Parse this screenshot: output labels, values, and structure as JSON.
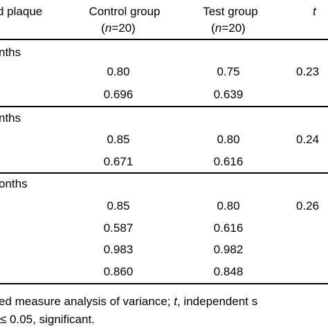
{
  "header": {
    "col1": "d plaque",
    "col2_line1": "Control group",
    "col2_line2_open": "(",
    "col2_line2_n": "n",
    "col2_line2_rest": "=20)",
    "col3_line1": "Test group",
    "col3_line2_open": "(",
    "col3_line2_n": "n",
    "col3_line2_rest": "=20)",
    "col4": "t"
  },
  "sections": [
    {
      "label": "nths",
      "rows": [
        {
          "control": "0.80",
          "test": "0.75",
          "t": "0.23"
        },
        {
          "control": "0.696",
          "test": "0.639",
          "t": ""
        }
      ]
    },
    {
      "label": "nths",
      "rows": [
        {
          "control": "0.85",
          "test": "0.80",
          "t": "0.24"
        },
        {
          "control": "0.671",
          "test": "0.616",
          "t": ""
        }
      ]
    },
    {
      "label": "onths",
      "rows": [
        {
          "control": "0.85",
          "test": "0.80",
          "t": "0.26"
        },
        {
          "control": "0.587",
          "test": "0.616",
          "t": ""
        },
        {
          "control": "0.983",
          "test": "0.982",
          "t": ""
        },
        {
          "control": "0.860",
          "test": "0.848",
          "t": ""
        }
      ]
    }
  ],
  "footnote": {
    "line1_a": "ed measure analysis of variance; ",
    "line1_t": "t",
    "line1_b": ", independent s",
    "line2": "≤ 0.05, significant."
  }
}
